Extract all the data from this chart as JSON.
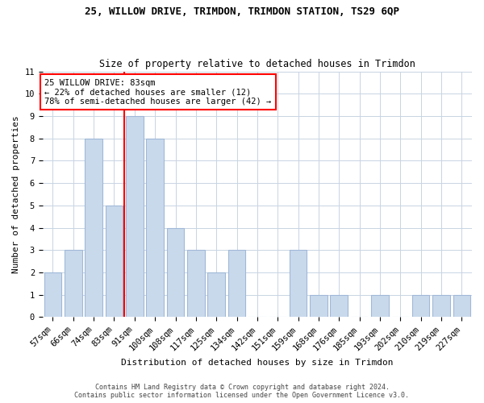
{
  "title": "25, WILLOW DRIVE, TRIMDON, TRIMDON STATION, TS29 6QP",
  "subtitle": "Size of property relative to detached houses in Trimdon",
  "xlabel": "Distribution of detached houses by size in Trimdon",
  "ylabel": "Number of detached properties",
  "categories": [
    "57sqm",
    "66sqm",
    "74sqm",
    "83sqm",
    "91sqm",
    "100sqm",
    "108sqm",
    "117sqm",
    "125sqm",
    "134sqm",
    "142sqm",
    "151sqm",
    "159sqm",
    "168sqm",
    "176sqm",
    "185sqm",
    "193sqm",
    "202sqm",
    "210sqm",
    "219sqm",
    "227sqm"
  ],
  "values": [
    2,
    3,
    8,
    5,
    9,
    8,
    4,
    3,
    2,
    3,
    0,
    0,
    3,
    1,
    1,
    0,
    1,
    0,
    1,
    1,
    1
  ],
  "bar_color": "#c9d9ec",
  "bar_edgecolor": "#a0b8d8",
  "highlight_index": 3,
  "annotation_line1": "25 WILLOW DRIVE: 83sqm",
  "annotation_line2": "← 22% of detached houses are smaller (12)",
  "annotation_line3": "78% of semi-detached houses are larger (42) →",
  "ylim": [
    0,
    11
  ],
  "yticks": [
    0,
    1,
    2,
    3,
    4,
    5,
    6,
    7,
    8,
    9,
    10,
    11
  ],
  "footer1": "Contains HM Land Registry data © Crown copyright and database right 2024.",
  "footer2": "Contains public sector information licensed under the Open Government Licence v3.0.",
  "background_color": "#ffffff",
  "grid_color": "#c8d4e3",
  "title_fontsize": 9,
  "subtitle_fontsize": 8.5,
  "ylabel_fontsize": 8,
  "xlabel_fontsize": 8,
  "tick_fontsize": 7.5,
  "annot_fontsize": 7.5,
  "footer_fontsize": 6
}
